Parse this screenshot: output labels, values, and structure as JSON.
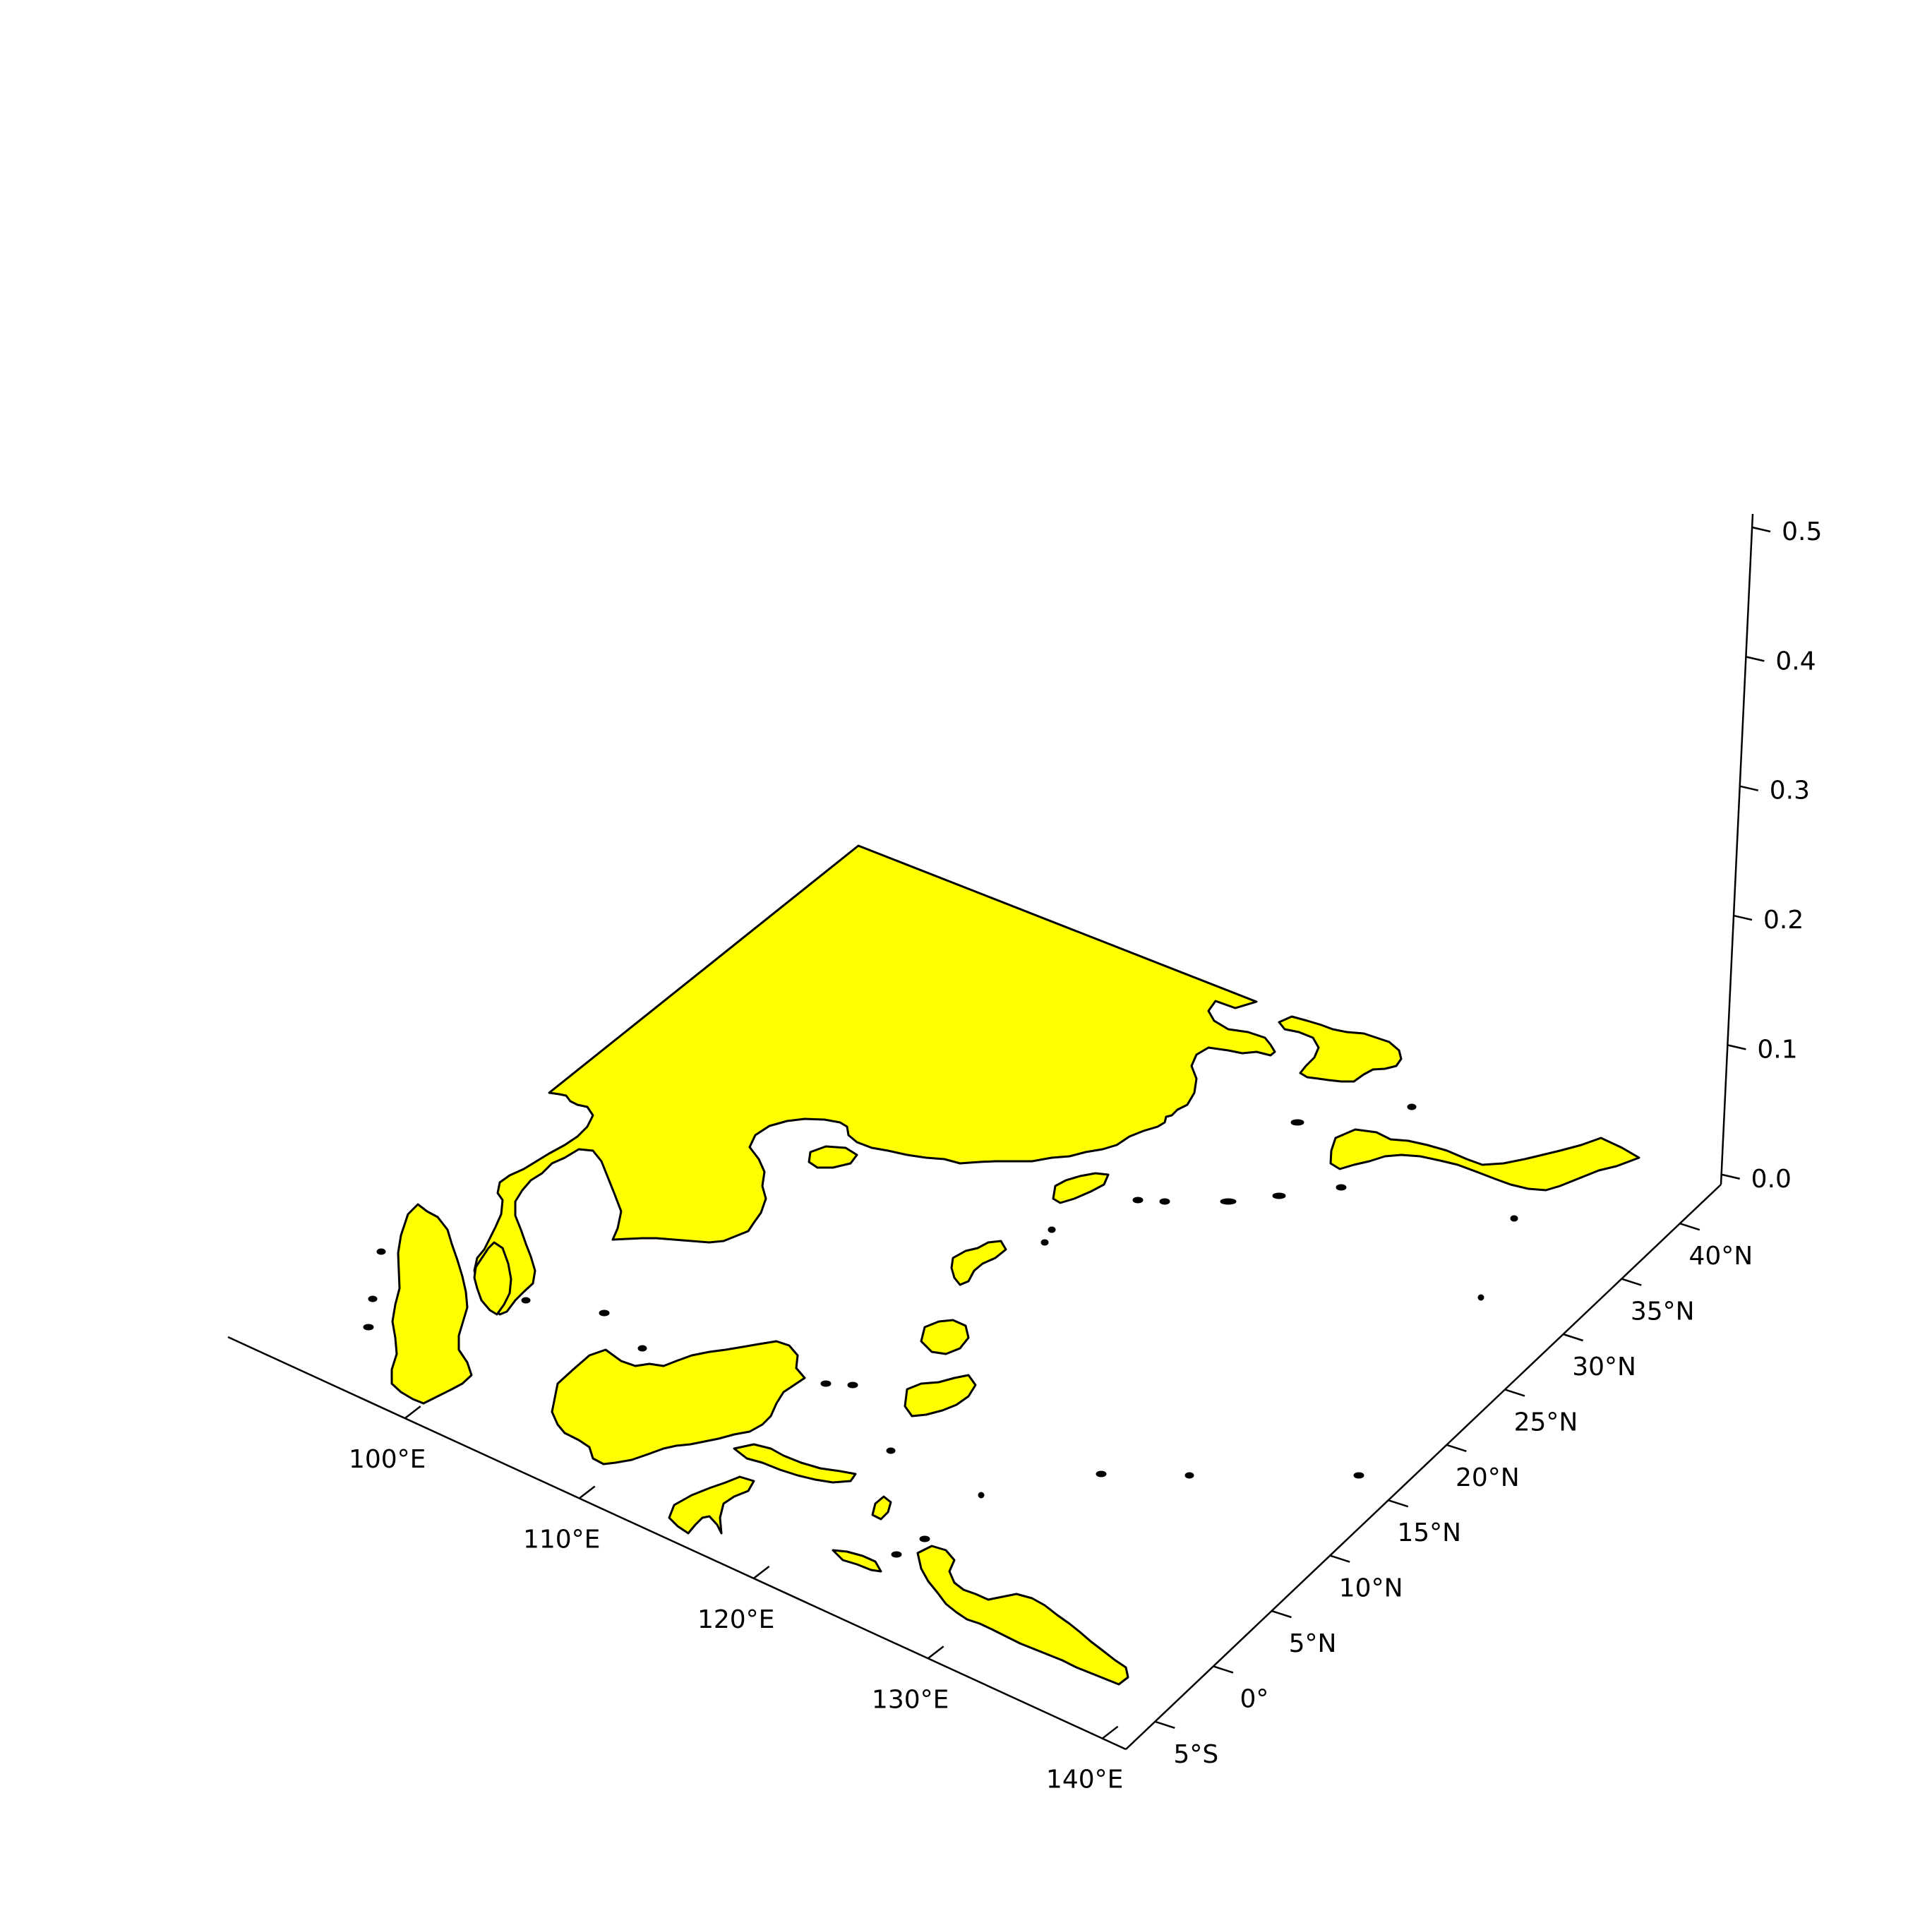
{
  "figure": {
    "land_color": "#ffff00",
    "outline_color": "#000000",
    "background_color": "#ffffff"
  },
  "x_axis": {
    "ticks": [
      {
        "label": "100°E"
      },
      {
        "label": "110°E"
      },
      {
        "label": "120°E"
      },
      {
        "label": "130°E"
      },
      {
        "label": "140°E"
      }
    ]
  },
  "y_axis": {
    "ticks": [
      {
        "label": "5°S"
      },
      {
        "label": "0°"
      },
      {
        "label": "5°N"
      },
      {
        "label": "10°N"
      },
      {
        "label": "15°N"
      },
      {
        "label": "20°N"
      },
      {
        "label": "25°N"
      },
      {
        "label": "30°N"
      },
      {
        "label": "35°N"
      },
      {
        "label": "40°N"
      }
    ]
  },
  "z_axis": {
    "ticks": [
      {
        "label": "0.0"
      },
      {
        "label": "0.1"
      },
      {
        "label": "0.2"
      },
      {
        "label": "0.3"
      },
      {
        "label": "0.4"
      },
      {
        "label": "0.5"
      }
    ]
  },
  "land_features": [
    "asia-mainland",
    "sumatra",
    "malay-peninsula",
    "borneo",
    "sulawesi",
    "new-guinea",
    "philippines-luzon",
    "philippines-mindanao",
    "taiwan",
    "hainan",
    "korea",
    "japan",
    "java",
    "timor"
  ]
}
